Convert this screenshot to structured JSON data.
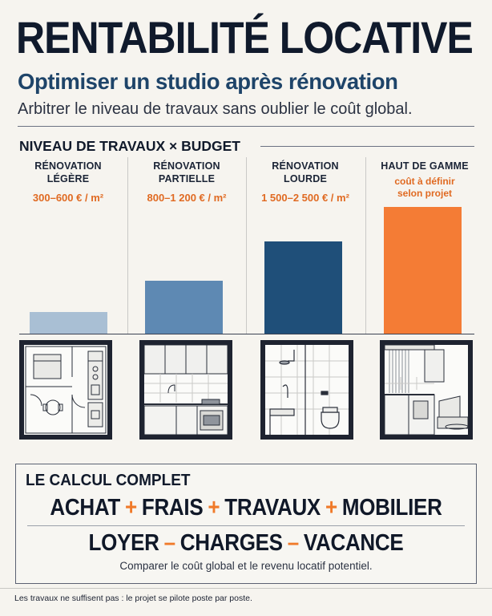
{
  "header": {
    "title": "RENTABILITÉ LOCATIVE",
    "subtitle": "Optimiser un studio après rénovation",
    "tagline": "Arbitrer le niveau de travaux sans oublier le coût global."
  },
  "section": {
    "heading": "NIVEAU DE TRAVAUX × BUDGET"
  },
  "levels": [
    {
      "name_line1": "RÉNOVATION",
      "name_line2": "LÉGÈRE",
      "price": "300–600 € / m²",
      "price_line2": "",
      "relative_height": 0.17,
      "color": "#a9bfd4"
    },
    {
      "name_line1": "RÉNOVATION",
      "name_line2": "PARTIELLE",
      "price": "800–1 200 € / m²",
      "price_line2": "",
      "relative_height": 0.42,
      "color": "#5e89b3"
    },
    {
      "name_line1": "RÉNOVATION",
      "name_line2": "LOURDE",
      "price": "1 500–2 500 € / m²",
      "price_line2": "",
      "relative_height": 0.73,
      "color": "#1f4f79"
    },
    {
      "name_line1": "HAUT DE GAMME",
      "name_line2": "",
      "price": "coût à définir",
      "price_line2": "selon projet",
      "relative_height": 1.0,
      "color": "#f47c35"
    }
  ],
  "illustrations": [
    "floor-plan-icon",
    "kitchen-icon",
    "bathroom-icon",
    "studio-interior-icon"
  ],
  "calc": {
    "title": "LE CALCUL COMPLET",
    "line1": {
      "t1": "ACHAT",
      "o1": "+",
      "t2": "FRAIS",
      "o2": "+",
      "t3": "TRAVAUX",
      "o3": "+",
      "t4": "MOBILIER"
    },
    "line2": {
      "t1": "LOYER",
      "o1": "–",
      "t2": "CHARGES",
      "o2": "–",
      "t3": "VACANCE"
    },
    "note": "Comparer le coût global et le revenu locatif potentiel."
  },
  "footer": "Les travaux ne suffisent pas : le projet se pilote poste par poste.",
  "colors": {
    "accent": "#f07a2a",
    "navy": "#101a2c",
    "blue": "#1e4469"
  }
}
